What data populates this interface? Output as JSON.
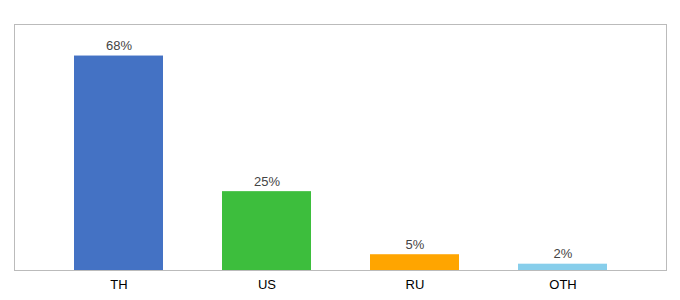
{
  "chart_data": {
    "type": "bar",
    "categories": [
      "TH",
      "US",
      "RU",
      "OTH"
    ],
    "values": [
      68,
      25,
      5,
      2
    ],
    "value_labels": [
      "68%",
      "25%",
      "5%",
      "2%"
    ],
    "colors": [
      "#4472C4",
      "#3DBE3D",
      "#FFA500",
      "#87CEEB"
    ],
    "ylim": [
      0,
      78
    ],
    "grid": false,
    "data_labels": true,
    "tick_labels": "x"
  }
}
